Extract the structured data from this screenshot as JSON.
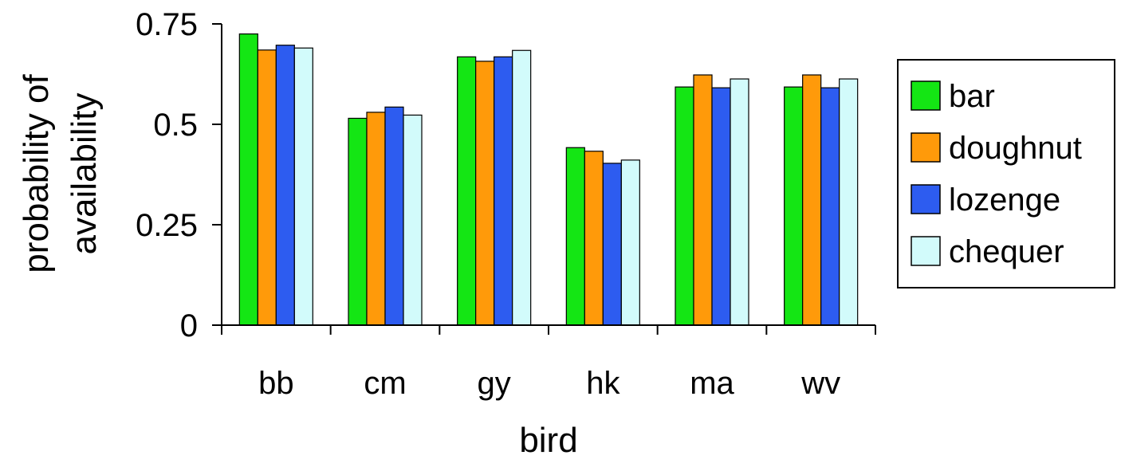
{
  "chart_data": {
    "type": "bar",
    "title": "",
    "xlabel": "bird",
    "ylabel_lines": [
      "probability of",
      "availability"
    ],
    "categories": [
      "bb",
      "cm",
      "gy",
      "hk",
      "ma",
      "wv"
    ],
    "series": [
      {
        "name": "bar",
        "color": "#14e614",
        "values": [
          0.725,
          0.515,
          0.668,
          0.442,
          0.593,
          0.593
        ]
      },
      {
        "name": "doughnut",
        "color": "#ff9a0a",
        "values": [
          0.685,
          0.53,
          0.657,
          0.433,
          0.623,
          0.623
        ]
      },
      {
        "name": "lozenge",
        "color": "#2d5cf0",
        "values": [
          0.697,
          0.543,
          0.668,
          0.403,
          0.591,
          0.591
        ]
      },
      {
        "name": "chequer",
        "color": "#d2fbfb",
        "values": [
          0.69,
          0.523,
          0.684,
          0.411,
          0.613,
          0.613
        ]
      }
    ],
    "ylim": [
      0,
      0.75
    ],
    "yticks": [
      0,
      0.25,
      0.5,
      0.75
    ],
    "ytick_labels": [
      "0",
      "0.25",
      "0.5",
      "0.75"
    ],
    "grid": false,
    "legend": "right"
  }
}
